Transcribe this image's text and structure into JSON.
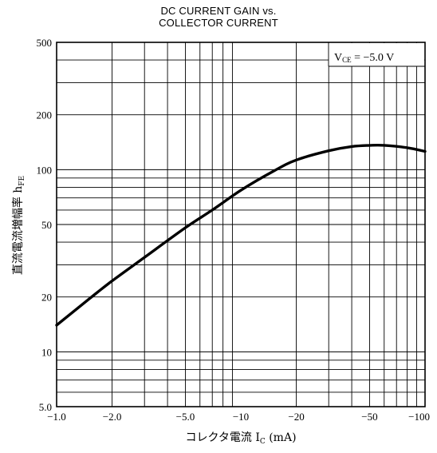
{
  "chart_data": {
    "type": "line",
    "title": [
      "DC CURRENT GAIN vs.",
      "COLLECTOR CURRENT"
    ],
    "xlabel": {
      "prefix": "コレクタ電流",
      "symbol": "I",
      "sub": "C",
      "unit": "(mA)"
    },
    "ylabel": {
      "prefix": "直流電流増幅率",
      "symbol": "h",
      "sub": "FE"
    },
    "x_scale": "log",
    "y_scale": "log",
    "xlim": [
      -1.0,
      -100
    ],
    "ylim": [
      5.0,
      500
    ],
    "x_tick_labels": [
      {
        "value": -1,
        "label": "−1.0"
      },
      {
        "value": -2,
        "label": "−2.0"
      },
      {
        "value": -5,
        "label": "−5.0"
      },
      {
        "value": -10,
        "label": "−10"
      },
      {
        "value": -20,
        "label": "−20"
      },
      {
        "value": -50,
        "label": "−50"
      },
      {
        "value": -100,
        "label": "−100"
      }
    ],
    "y_tick_labels": [
      {
        "value": 5,
        "label": "5.0"
      },
      {
        "value": 10,
        "label": "10"
      },
      {
        "value": 20,
        "label": "20"
      },
      {
        "value": 50,
        "label": "50"
      },
      {
        "value": 100,
        "label": "100"
      },
      {
        "value": 200,
        "label": "200"
      },
      {
        "value": 500,
        "label": "500"
      }
    ],
    "grid": true,
    "annotation": {
      "symbol": "V",
      "sub": "CE",
      "text": "= −5.0  V",
      "placement": "top-right"
    },
    "series": [
      {
        "x": [
          -1.0,
          -1.5,
          -2.0,
          -3.0,
          -5.0,
          -7.0,
          -10,
          -15,
          -20,
          -30,
          -40,
          -50,
          -60,
          -80,
          -100
        ],
        "y": [
          14,
          19.5,
          24.5,
          33,
          48,
          60,
          77,
          98,
          113,
          127,
          134,
          136,
          136,
          132,
          126
        ]
      }
    ]
  }
}
